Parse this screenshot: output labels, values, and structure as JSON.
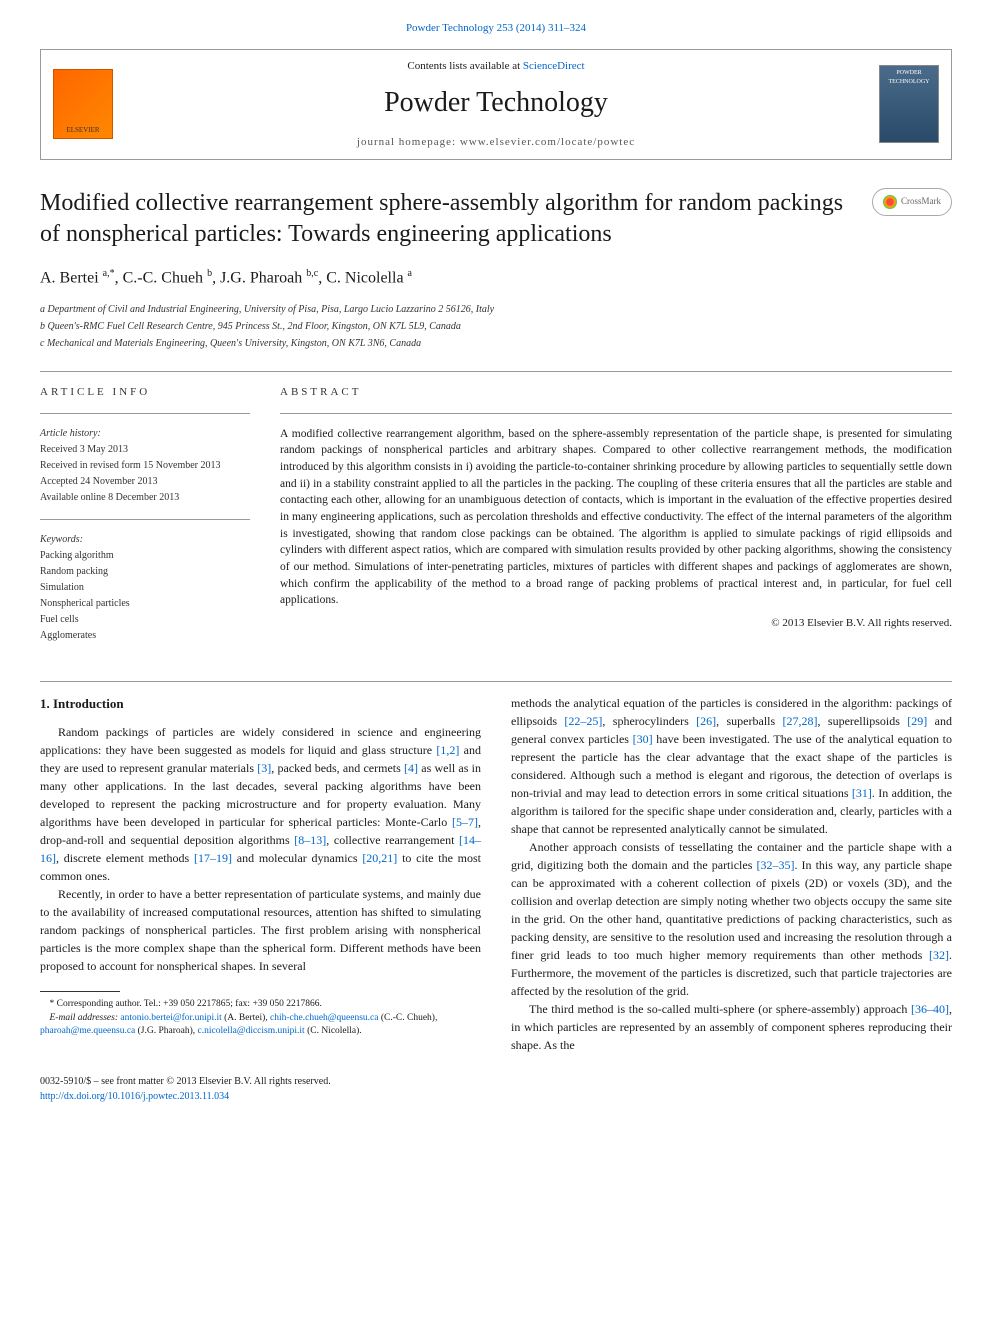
{
  "header": {
    "top_link": "Powder Technology 253 (2014) 311–324",
    "contents_line_prefix": "Contents lists available at ",
    "contents_line_link": "ScienceDirect",
    "journal_name": "Powder Technology",
    "homepage_prefix": "journal homepage: ",
    "homepage_url": "www.elsevier.com/locate/powtec",
    "elsevier_label": "ELSEVIER",
    "cover_label": "POWDER TECHNOLOGY"
  },
  "article": {
    "title": "Modified collective rearrangement sphere-assembly algorithm for random packings of nonspherical particles: Towards engineering applications",
    "crossmark": "CrossMark",
    "authors_html": "A. Bertei <sup>a,*</sup>, C.-C. Chueh <sup>b</sup>, J.G. Pharoah <sup>b,c</sup>, C. Nicolella <sup>a</sup>",
    "affiliations": [
      "a Department of Civil and Industrial Engineering, University of Pisa, Pisa, Largo Lucio Lazzarino 2 56126, Italy",
      "b Queen's-RMC Fuel Cell Research Centre, 945 Princess St., 2nd Floor, Kingston, ON K7L 5L9, Canada",
      "c Mechanical and Materials Engineering, Queen's University, Kingston, ON K7L 3N6, Canada"
    ]
  },
  "info": {
    "header": "ARTICLE INFO",
    "history_label": "Article history:",
    "history": [
      "Received 3 May 2013",
      "Received in revised form 15 November 2013",
      "Accepted 24 November 2013",
      "Available online 8 December 2013"
    ],
    "keywords_label": "Keywords:",
    "keywords": [
      "Packing algorithm",
      "Random packing",
      "Simulation",
      "Nonspherical particles",
      "Fuel cells",
      "Agglomerates"
    ]
  },
  "abstract": {
    "header": "ABSTRACT",
    "text": "A modified collective rearrangement algorithm, based on the sphere-assembly representation of the particle shape, is presented for simulating random packings of nonspherical particles and arbitrary shapes. Compared to other collective rearrangement methods, the modification introduced by this algorithm consists in i) avoiding the particle-to-container shrinking procedure by allowing particles to sequentially settle down and ii) in a stability constraint applied to all the particles in the packing. The coupling of these criteria ensures that all the particles are stable and contacting each other, allowing for an unambiguous detection of contacts, which is important in the evaluation of the effective properties desired in many engineering applications, such as percolation thresholds and effective conductivity. The effect of the internal parameters of the algorithm is investigated, showing that random close packings can be obtained. The algorithm is applied to simulate packings of rigid ellipsoids and cylinders with different aspect ratios, which are compared with simulation results provided by other packing algorithms, showing the consistency of our method. Simulations of inter-penetrating particles, mixtures of particles with different shapes and packings of agglomerates are shown, which confirm the applicability of the method to a broad range of packing problems of practical interest and, in particular, for fuel cell applications.",
    "copyright": "© 2013 Elsevier B.V. All rights reserved."
  },
  "body": {
    "intro_heading": "1. Introduction",
    "col1_p1_a": "Random packings of particles are widely considered in science and engineering applications: they have been suggested as models for liquid and glass structure ",
    "col1_p1_ref1": "[1,2]",
    "col1_p1_b": " and they are used to represent granular materials ",
    "col1_p1_ref2": "[3]",
    "col1_p1_c": ", packed beds, and cermets ",
    "col1_p1_ref3": "[4]",
    "col1_p1_d": " as well as in many other applications. In the last decades, several packing algorithms have been developed to represent the packing microstructure and for property evaluation. Many algorithms have been developed in particular for spherical particles: Monte-Carlo ",
    "col1_p1_ref4": "[5–7]",
    "col1_p1_e": ", drop-and-roll and sequential deposition algorithms ",
    "col1_p1_ref5": "[8–13]",
    "col1_p1_f": ", collective rearrangement ",
    "col1_p1_ref6": "[14–16]",
    "col1_p1_g": ", discrete element methods ",
    "col1_p1_ref7": "[17–19]",
    "col1_p1_h": " and molecular dynamics ",
    "col1_p1_ref8": "[20,21]",
    "col1_p1_i": " to cite the most common ones.",
    "col1_p2": "Recently, in order to have a better representation of particulate systems, and mainly due to the availability of increased computational resources, attention has shifted to simulating random packings of nonspherical particles. The first problem arising with nonspherical particles is the more complex shape than the spherical form. Different methods have been proposed to account for nonspherical shapes. In several",
    "col2_p1_a": "methods the analytical equation of the particles is considered in the algorithm: packings of ellipsoids ",
    "col2_p1_ref1": "[22–25]",
    "col2_p1_b": ", spherocylinders ",
    "col2_p1_ref2": "[26]",
    "col2_p1_c": ", superballs ",
    "col2_p1_ref3": "[27,28]",
    "col2_p1_d": ", superellipsoids ",
    "col2_p1_ref4": "[29]",
    "col2_p1_e": " and general convex particles ",
    "col2_p1_ref5": "[30]",
    "col2_p1_f": " have been investigated. The use of the analytical equation to represent the particle has the clear advantage that the exact shape of the particles is considered. Although such a method is elegant and rigorous, the detection of overlaps is non-trivial and may lead to detection errors in some critical situations ",
    "col2_p1_ref6": "[31]",
    "col2_p1_g": ". In addition, the algorithm is tailored for the specific shape under consideration and, clearly, particles with a shape that cannot be represented analytically cannot be simulated.",
    "col2_p2_a": "Another approach consists of tessellating the container and the particle shape with a grid, digitizing both the domain and the particles ",
    "col2_p2_ref1": "[32–35]",
    "col2_p2_b": ". In this way, any particle shape can be approximated with a coherent collection of pixels (2D) or voxels (3D), and the collision and overlap detection are simply noting whether two objects occupy the same site in the grid. On the other hand, quantitative predictions of packing characteristics, such as packing density, are sensitive to the resolution used and increasing the resolution through a finer grid leads to too much higher memory requirements than other methods ",
    "col2_p2_ref2": "[32]",
    "col2_p2_c": ". Furthermore, the movement of the particles is discretized, such that particle trajectories are affected by the resolution of the grid.",
    "col2_p3_a": "The third method is the so-called multi-sphere (or sphere-assembly) approach ",
    "col2_p3_ref1": "[36–40]",
    "col2_p3_b": ", in which particles are represented by an assembly of component spheres reproducing their shape. As the"
  },
  "footnotes": {
    "corr": "* Corresponding author. Tel.: +39 050 2217865; fax: +39 050 2217866.",
    "emails_label": "E-mail addresses: ",
    "email1": "antonio.bertei@for.unipi.it",
    "name1": " (A. Bertei), ",
    "email2": "chih-che.chueh@queensu.ca",
    "name2": " (C.-C. Chueh), ",
    "email3": "pharoah@me.queensu.ca",
    "name3": " (J.G. Pharoah), ",
    "email4": "c.nicolella@diccism.unipi.it",
    "name4": " (C. Nicolella)."
  },
  "footer": {
    "left_line1": "0032-5910/$ – see front matter © 2013 Elsevier B.V. All rights reserved.",
    "left_line2": "http://dx.doi.org/10.1016/j.powtec.2013.11.034"
  }
}
